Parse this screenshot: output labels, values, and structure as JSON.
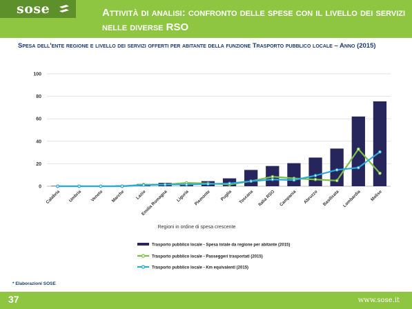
{
  "brand": {
    "logo_text": "sose",
    "website": "www.sose.it"
  },
  "header": {
    "title": "Attività di analisi: confronto delle spese con il livello dei servizi nelle diverse RSO"
  },
  "subtitle": "Spesa dell'ente regione e livello dei servizi offerti per abitante della funzione Trasporto pubblico locale – Anno (2015)",
  "footnote": "* Elaborazioni SOSE",
  "page_number": "37",
  "colors": {
    "header_green": "#8ec641",
    "bar": "#27265c",
    "line_green": "#7ac143",
    "line_blue": "#29a9e0"
  },
  "chart_data": {
    "type": "bar",
    "xlabel": "Regioni in ordine di spesa crescente",
    "ylabel": "",
    "ylim": [
      0,
      100
    ],
    "yticks": [
      0,
      20,
      40,
      60,
      80,
      100
    ],
    "grid": true,
    "legend_position": "bottom",
    "categories": [
      "Calabria",
      "Umbria",
      "Veneto",
      "Marche",
      "Lazio",
      "Emilia Romagna",
      "Liguria",
      "Piemonte",
      "Puglia",
      "Toscana",
      "Italia RSO",
      "Campania",
      "Abruzzo",
      "Basilicata",
      "Lombardia",
      "Molise"
    ],
    "series": [
      {
        "name": "Trasporto pubblico locale - Spesa totale da regione per abitante (2015)",
        "type": "bar",
        "values": [
          0.3,
          0.4,
          0.5,
          0.8,
          2,
          3,
          3,
          4.5,
          7,
          14.5,
          18,
          20.5,
          25.5,
          33.5,
          62,
          75.5
        ]
      },
      {
        "name": "Trasporto pubblico locale - Passeggeri trasportati (2015)",
        "type": "line",
        "values": [
          0,
          0,
          0,
          0,
          1.5,
          1.5,
          3,
          2.5,
          1.5,
          4.5,
          8.5,
          7,
          6,
          5,
          33,
          11.5
        ]
      },
      {
        "name": "Trasporto pubblico locale - Km equivalenti (2015)",
        "type": "line",
        "values": [
          0,
          0,
          0,
          0,
          1,
          1.5,
          1.5,
          2,
          2.5,
          4.5,
          6,
          5.5,
          9.5,
          14.5,
          16.5,
          30.5
        ]
      }
    ]
  }
}
